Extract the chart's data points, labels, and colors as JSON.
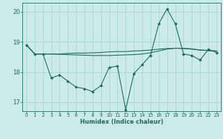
{
  "title": "",
  "xlabel": "Humidex (Indice chaleur)",
  "ylabel": "",
  "background_color": "#cceae7",
  "grid_color": "#aad4d0",
  "line_color": "#1a6b5a",
  "marker_color": "#1a6b5a",
  "xlim": [
    -0.5,
    23.5
  ],
  "ylim": [
    16.7,
    20.3
  ],
  "yticks": [
    17,
    18,
    19,
    20
  ],
  "xticks": [
    0,
    1,
    2,
    3,
    4,
    5,
    6,
    7,
    8,
    9,
    10,
    11,
    12,
    13,
    14,
    15,
    16,
    17,
    18,
    19,
    20,
    21,
    22,
    23
  ],
  "line1_x": [
    0,
    1,
    2,
    3,
    4,
    5,
    6,
    7,
    8,
    9,
    10,
    11,
    12,
    13,
    14,
    15,
    16,
    17,
    18,
    19,
    20,
    21,
    22,
    23
  ],
  "line1_y": [
    18.9,
    18.6,
    18.6,
    17.8,
    17.9,
    17.7,
    17.5,
    17.45,
    17.35,
    17.55,
    18.15,
    18.2,
    16.75,
    17.95,
    18.25,
    18.55,
    19.6,
    20.1,
    19.6,
    18.6,
    18.55,
    18.4,
    18.75,
    18.65
  ],
  "line2_x": [
    0,
    1,
    2,
    3,
    4,
    5,
    6,
    7,
    8,
    9,
    10,
    11,
    12,
    13,
    14,
    15,
    16,
    17,
    18,
    19,
    20,
    21,
    22,
    23
  ],
  "line2_y": [
    18.9,
    18.6,
    18.6,
    18.6,
    18.6,
    18.62,
    18.63,
    18.63,
    18.64,
    18.65,
    18.67,
    18.68,
    18.68,
    18.7,
    18.71,
    18.73,
    18.76,
    18.78,
    18.79,
    18.78,
    18.76,
    18.73,
    18.72,
    18.7
  ],
  "line3_x": [
    0,
    1,
    2,
    3,
    4,
    5,
    6,
    7,
    8,
    9,
    10,
    11,
    12,
    13,
    14,
    15,
    16,
    17,
    18,
    19,
    20,
    21,
    22,
    23
  ],
  "line3_y": [
    18.9,
    18.6,
    18.6,
    18.6,
    18.59,
    18.58,
    18.57,
    18.56,
    18.55,
    18.55,
    18.55,
    18.56,
    18.57,
    18.58,
    18.6,
    18.64,
    18.7,
    18.76,
    18.79,
    18.79,
    18.77,
    18.73,
    18.71,
    18.69
  ]
}
